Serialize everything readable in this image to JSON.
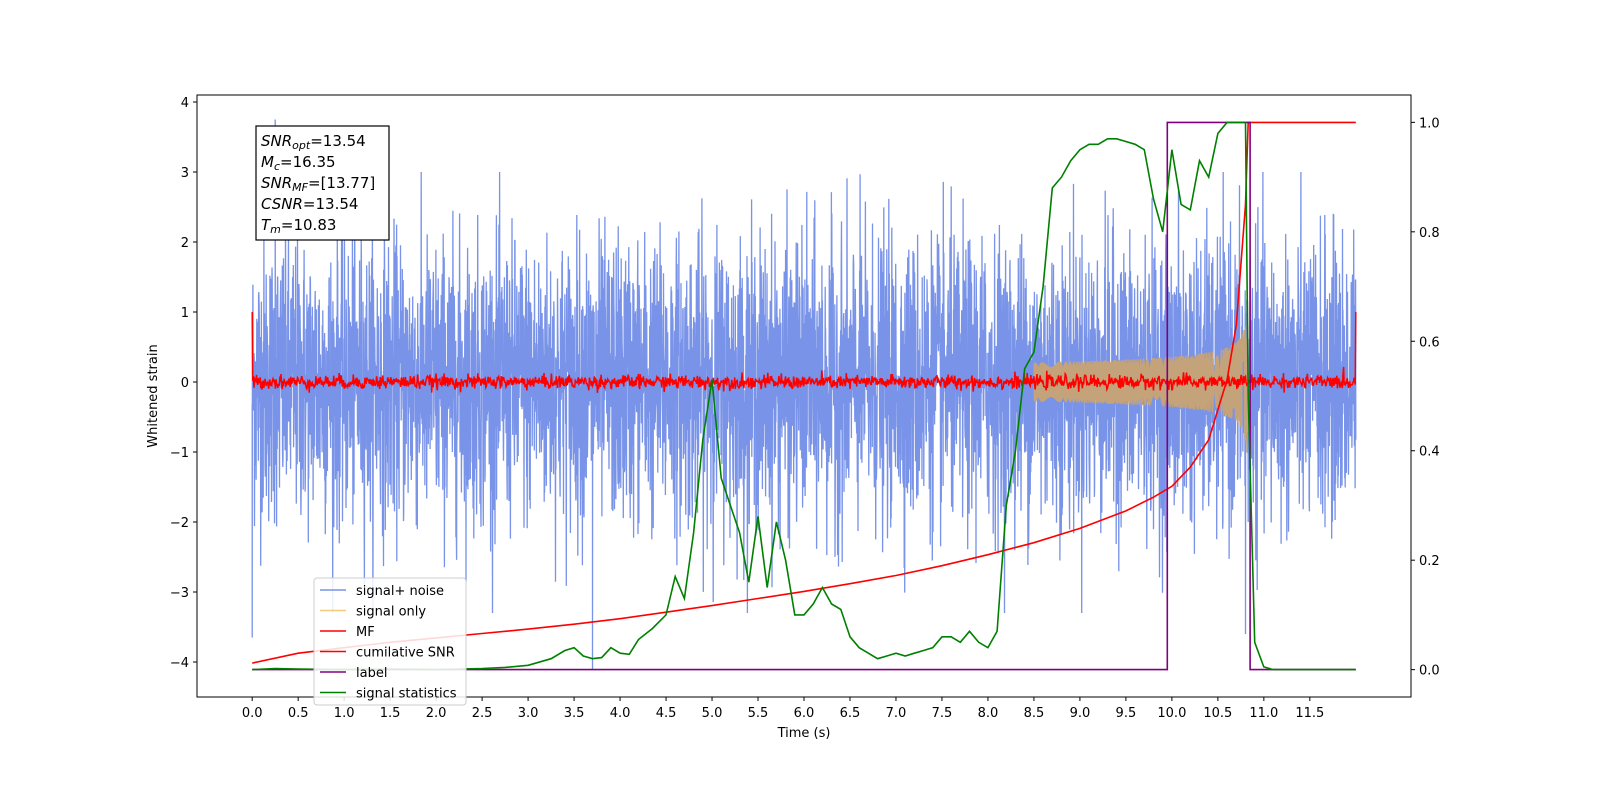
{
  "chart_data": {
    "type": "line",
    "xlabel": "Time (s)",
    "ylabel": "Whitened strain",
    "xlim": [
      -0.6,
      12.6
    ],
    "ylim": [
      -4.5,
      4.1
    ],
    "y2lim": [
      -0.05,
      1.05
    ],
    "grid": false,
    "legend_position": "lower-left",
    "xticks": [
      0.0,
      0.5,
      1.0,
      1.5,
      2.0,
      2.5,
      3.0,
      3.5,
      4.0,
      4.5,
      5.0,
      5.5,
      6.0,
      6.5,
      7.0,
      7.5,
      8.0,
      8.5,
      9.0,
      9.5,
      10.0,
      10.5,
      11.0,
      11.5
    ],
    "xtick_labels": [
      "0.0",
      "0.5",
      "1.0",
      "1.5",
      "2.0",
      "2.5",
      "3.0",
      "3.5",
      "4.0",
      "4.5",
      "5.0",
      "5.5",
      "6.0",
      "6.5",
      "7.0",
      "7.5",
      "8.0",
      "8.5",
      "9.0",
      "9.5",
      "10.0",
      "10.5",
      "11.0",
      "11.5"
    ],
    "yticks": [
      -4,
      -3,
      -2,
      -1,
      0,
      1,
      2,
      3,
      4
    ],
    "ytick_labels": [
      "−4",
      "−3",
      "−2",
      "−1",
      "0",
      "1",
      "2",
      "3",
      "4"
    ],
    "y2ticks": [
      0.0,
      0.2,
      0.4,
      0.6,
      0.8,
      1.0
    ],
    "y2tick_labels": [
      "0.0",
      "0.2",
      "0.4",
      "0.6",
      "0.8",
      "1.0"
    ],
    "annotation": {
      "lines": [
        {
          "main": "SNR",
          "sub": "opt",
          "value": "=13.54"
        },
        {
          "main": "M",
          "sub": "c",
          "value": "=16.35"
        },
        {
          "main": "SNR",
          "sub": "MF",
          "value": "=[13.77]"
        },
        {
          "main": "CSNR",
          "sub": "",
          "value": "=13.54"
        },
        {
          "main": "T",
          "sub": "m",
          "value": "=10.83"
        }
      ]
    },
    "series": [
      {
        "name": "signal+ noise",
        "color": "#7893e8",
        "axis": "left",
        "kind": "noise",
        "x_range": [
          0.0,
          12.0
        ],
        "amplitude_std": 1.0,
        "notable_points": [
          [
            0.0,
            -3.65
          ],
          [
            0.25,
            3.75
          ],
          [
            3.7,
            -4.1
          ],
          [
            10.8,
            -3.6
          ]
        ]
      },
      {
        "name": "signal only",
        "color": "#f5c97a",
        "axis": "left",
        "kind": "chirp",
        "x_range": [
          8.5,
          10.83
        ],
        "peak_time": 10.83,
        "peak_amplitude": 2.5
      },
      {
        "name": "MF",
        "color": "#ff0000",
        "axis": "left",
        "kind": "noise",
        "x_range": [
          0.0,
          12.0
        ],
        "amplitude_std": 0.05,
        "end_values": [
          1.0,
          1.0
        ]
      },
      {
        "name": "cumilative SNR",
        "color": "#ff0000",
        "axis": "right",
        "x": [
          0.0,
          0.5,
          1.0,
          1.5,
          2.0,
          2.5,
          3.0,
          3.5,
          4.0,
          4.5,
          5.0,
          5.5,
          6.0,
          6.5,
          7.0,
          7.5,
          8.0,
          8.5,
          9.0,
          9.5,
          9.8,
          10.0,
          10.2,
          10.4,
          10.6,
          10.7,
          10.8,
          10.83,
          10.85,
          12.0
        ],
        "values": [
          0.012,
          0.03,
          0.04,
          0.05,
          0.058,
          0.066,
          0.074,
          0.083,
          0.093,
          0.105,
          0.117,
          0.13,
          0.143,
          0.157,
          0.172,
          0.19,
          0.21,
          0.232,
          0.258,
          0.29,
          0.315,
          0.335,
          0.37,
          0.42,
          0.53,
          0.63,
          0.85,
          1.0,
          1.0,
          1.0
        ]
      },
      {
        "name": "label",
        "color": "#800080",
        "axis": "right",
        "x": [
          0.0,
          9.95,
          9.95,
          10.85,
          10.85,
          11.0,
          12.0
        ],
        "values": [
          0.0,
          0.0,
          1.0,
          1.0,
          0.0,
          0.0,
          0.0
        ]
      },
      {
        "name": "signal statistics",
        "color": "#008000",
        "axis": "right",
        "x": [
          0.0,
          0.25,
          0.5,
          1.0,
          1.5,
          2.0,
          2.5,
          2.75,
          3.0,
          3.25,
          3.4,
          3.5,
          3.6,
          3.7,
          3.8,
          3.9,
          4.0,
          4.1,
          4.2,
          4.35,
          4.5,
          4.6,
          4.7,
          4.8,
          4.9,
          5.0,
          5.1,
          5.2,
          5.3,
          5.4,
          5.5,
          5.6,
          5.7,
          5.8,
          5.9,
          6.0,
          6.1,
          6.2,
          6.3,
          6.4,
          6.5,
          6.6,
          6.7,
          6.8,
          6.9,
          7.0,
          7.1,
          7.2,
          7.3,
          7.4,
          7.5,
          7.6,
          7.7,
          7.8,
          7.9,
          8.0,
          8.1,
          8.2,
          8.3,
          8.4,
          8.5,
          8.6,
          8.7,
          8.8,
          8.9,
          9.0,
          9.1,
          9.2,
          9.3,
          9.4,
          9.5,
          9.6,
          9.7,
          9.8,
          9.9,
          10.0,
          10.1,
          10.2,
          10.3,
          10.4,
          10.5,
          10.6,
          10.7,
          10.8,
          10.83,
          10.9,
          11.0,
          11.1,
          11.5,
          12.0
        ],
        "values": [
          0.0,
          0.002,
          0.001,
          0.0,
          0.001,
          0.0,
          0.002,
          0.004,
          0.008,
          0.02,
          0.035,
          0.04,
          0.025,
          0.02,
          0.022,
          0.04,
          0.03,
          0.028,
          0.055,
          0.075,
          0.1,
          0.17,
          0.13,
          0.25,
          0.42,
          0.53,
          0.35,
          0.3,
          0.25,
          0.16,
          0.28,
          0.15,
          0.27,
          0.2,
          0.1,
          0.1,
          0.12,
          0.15,
          0.12,
          0.11,
          0.06,
          0.04,
          0.03,
          0.02,
          0.025,
          0.03,
          0.025,
          0.03,
          0.035,
          0.04,
          0.06,
          0.06,
          0.05,
          0.07,
          0.05,
          0.04,
          0.07,
          0.3,
          0.4,
          0.55,
          0.58,
          0.7,
          0.88,
          0.9,
          0.93,
          0.95,
          0.96,
          0.96,
          0.97,
          0.97,
          0.965,
          0.96,
          0.95,
          0.86,
          0.8,
          0.95,
          0.85,
          0.84,
          0.93,
          0.9,
          0.98,
          1.0,
          1.0,
          1.0,
          0.5,
          0.05,
          0.005,
          0.0,
          0.0,
          0.0
        ]
      }
    ]
  }
}
